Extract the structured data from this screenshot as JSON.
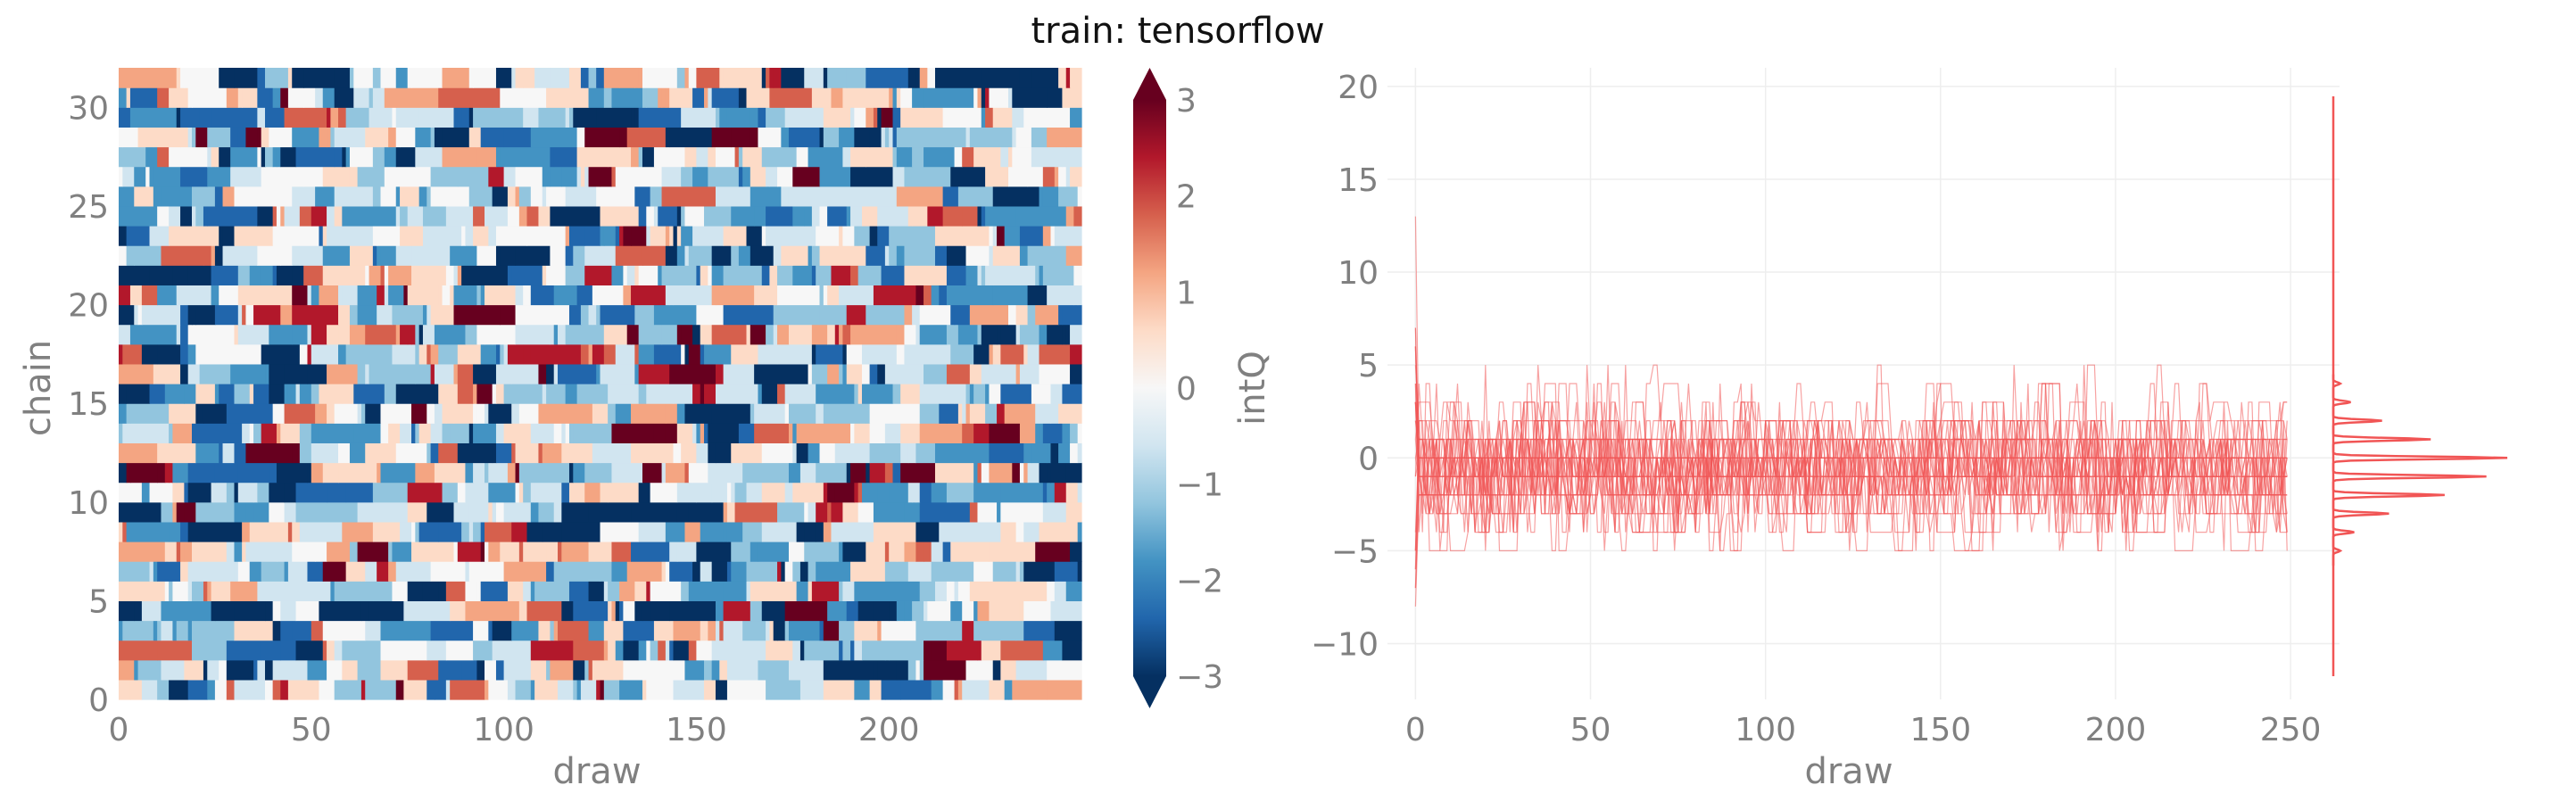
{
  "title": "train: tensorflow",
  "colors": {
    "trace": "#f15555",
    "tick_text": "#808080",
    "grid": "#eeeeee",
    "cmap": [
      "#053061",
      "#2166ac",
      "#4393c3",
      "#92c5de",
      "#d1e5f0",
      "#f7f7f7",
      "#fddbc7",
      "#f4a582",
      "#d6604d",
      "#b2182b",
      "#67001f"
    ]
  },
  "chart_data": [
    {
      "type": "heatmap",
      "xlabel": "draw",
      "ylabel": "chain",
      "colorbar_label": "intQ",
      "x_range": [
        0,
        250
      ],
      "y_range": [
        0,
        32
      ],
      "n_draws": 250,
      "n_chains": 32,
      "value_range": [
        -3,
        3
      ],
      "x_ticks": [
        "0",
        "50",
        "100",
        "150",
        "200"
      ],
      "y_ticks": [
        "0",
        "5",
        "10",
        "15",
        "20",
        "25",
        "30"
      ],
      "colorbar_ticks": [
        "−3",
        "−2",
        "−1",
        "0",
        "1",
        "2",
        "3"
      ],
      "colorbar_extend": "both",
      "grid": false
    },
    {
      "type": "line",
      "xlabel": "draw",
      "ylabel": "",
      "x_range": [
        0,
        250
      ],
      "y_range": [
        -13,
        21
      ],
      "n_chains": 32,
      "n_draws": 250,
      "x_ticks": [
        "0",
        "50",
        "100",
        "150",
        "200",
        "250"
      ],
      "y_ticks": [
        "−10",
        "−5",
        "0",
        "5",
        "10",
        "15",
        "20"
      ],
      "levels": [
        -5,
        -4,
        -3,
        -2,
        -1,
        0,
        1,
        2,
        3,
        4,
        5
      ],
      "level_weights": [
        0.01,
        0.03,
        0.08,
        0.16,
        0.22,
        0.25,
        0.14,
        0.07,
        0.025,
        0.01,
        0.005
      ],
      "first_draw_max": 13,
      "first_draw_min": -8,
      "grid": true,
      "marginal": {
        "type": "histogram",
        "orientation": "horizontal",
        "y_range": [
          -13,
          20
        ]
      }
    }
  ]
}
